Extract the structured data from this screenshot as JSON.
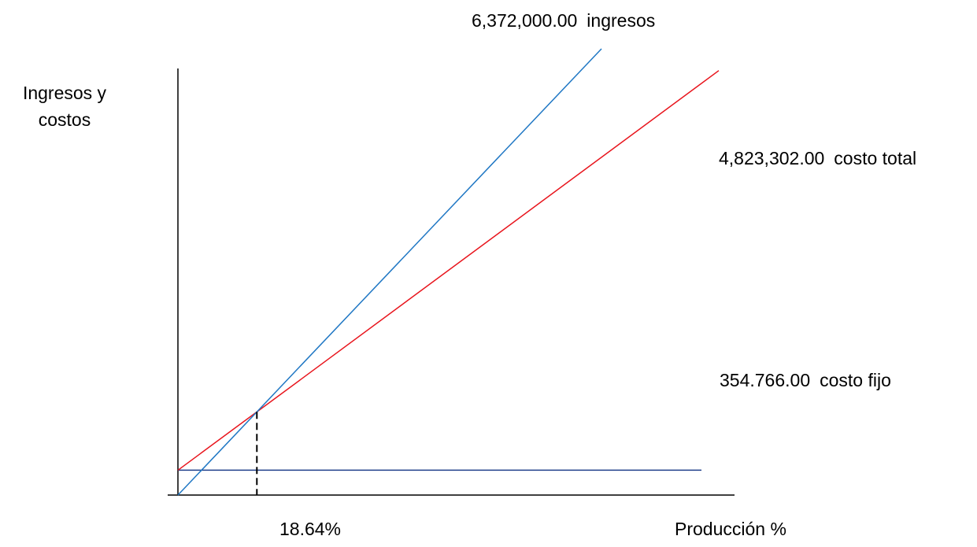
{
  "chart_data": {
    "type": "line",
    "title": "",
    "xlabel": "Producción %",
    "ylabel": "Ingresos y costos",
    "grid": false,
    "legend": "none",
    "series": [
      {
        "key": "ingresos",
        "value_label": "6,372,000.00",
        "name": "ingresos",
        "color": "#1f77c4",
        "x": [
          0,
          100
        ],
        "y": [
          0,
          6372000
        ]
      },
      {
        "key": "costo_total",
        "value_label": "4,823,302.00",
        "name": "costo total",
        "color": "#e8141c",
        "x": [
          0,
          100
        ],
        "y": [
          354766,
          4823302
        ]
      },
      {
        "key": "costo_fijo",
        "value_label": "354.766.00",
        "name": "costo fijo",
        "color": "#1f3f8a",
        "x": [
          0,
          100
        ],
        "y": [
          354766,
          354766
        ]
      }
    ],
    "break_even": {
      "label": "18.64%",
      "x": 18.64
    },
    "xlim": [
      0,
      100
    ],
    "ylim": [
      0,
      6372000
    ]
  }
}
